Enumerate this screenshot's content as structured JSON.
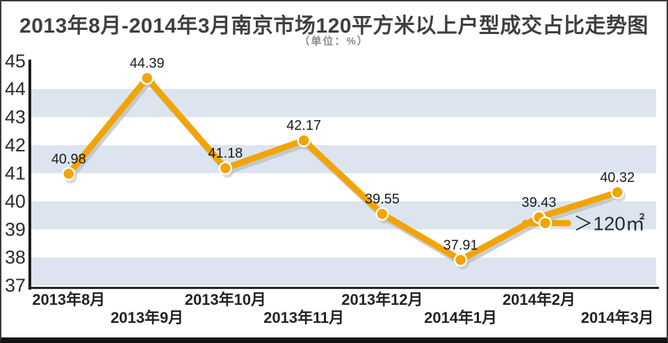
{
  "chart_data": {
    "type": "line",
    "title": "2013年8月-2014年3月南京市场120平方米以上户型成交占比走势图",
    "subtitle": "（单位：%）",
    "categories": [
      "2013年8月",
      "2013年9月",
      "2013年10月",
      "2013年11月",
      "2013年12月",
      "2014年1月",
      "2014年2月",
      "2014年3月"
    ],
    "series": [
      {
        "name": "＞120㎡",
        "values": [
          40.98,
          44.39,
          41.18,
          42.17,
          39.55,
          37.91,
          39.43,
          40.32
        ]
      }
    ],
    "value_labels": [
      "40.98",
      "44.39",
      "41.18",
      "42.17",
      "39.55",
      "37.91",
      "39.43",
      "40.32"
    ],
    "ylabel": "",
    "xlabel": "",
    "ylim": [
      37,
      45
    ],
    "ytick_step": 1,
    "yticks": [
      "45",
      "44",
      "43",
      "42",
      "41",
      "40",
      "39",
      "38",
      "37"
    ],
    "grid": "alternating horizontal bands",
    "legend": {
      "label": "＞120㎡",
      "position": "inside-right"
    },
    "colors": {
      "line": "#F2A402",
      "line_shadow": "#BDBDBD",
      "marker_fill": "#F2A402",
      "marker_stroke": "#FFFFFF",
      "band": "#DCE4F0",
      "axis": "#1A1A1A",
      "value_label": "#1A1A1A",
      "tick_label": "#2B2B2B",
      "title": "#3F3F3F",
      "subtitle": "#8A8A8A"
    }
  }
}
